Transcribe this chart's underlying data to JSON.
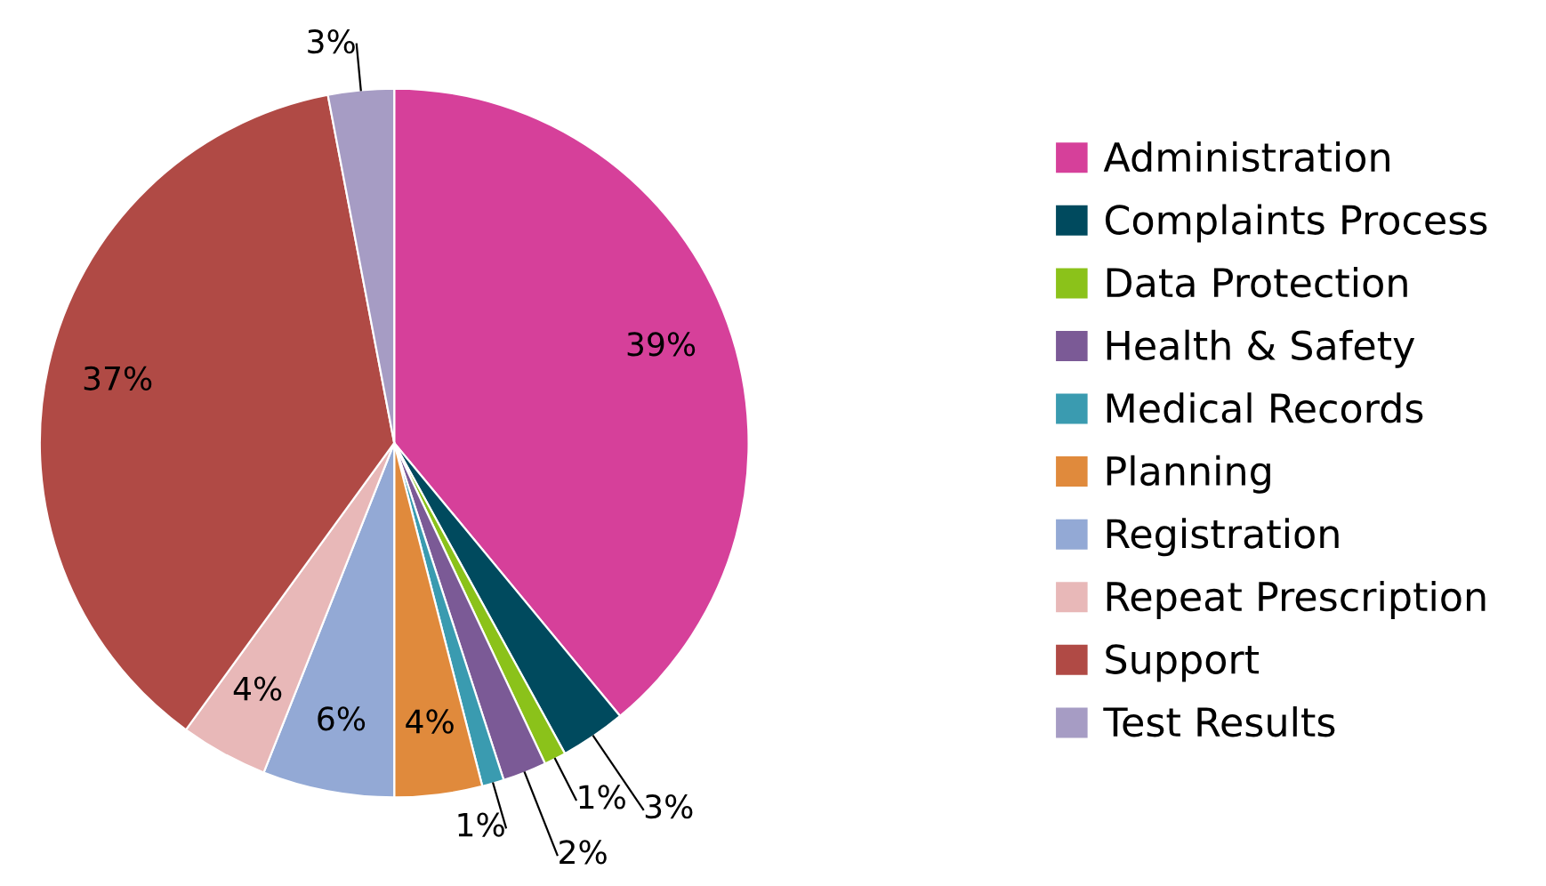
{
  "chart_data": {
    "type": "pie",
    "categories": [
      "Administration",
      "Complaints Process",
      "Data Protection",
      "Health & Safety",
      "Medical Records",
      "Planning",
      "Registration",
      "Repeat Prescription",
      "Support",
      "Test Results"
    ],
    "values": [
      39,
      3,
      1,
      2,
      1,
      4,
      6,
      4,
      37,
      3
    ],
    "value_labels": [
      "39%",
      "3%",
      "1%",
      "2%",
      "1%",
      "4%",
      "6%",
      "4%",
      "37%",
      "3%"
    ],
    "colors": [
      "#d6409a",
      "#004a5e",
      "#8bc21a",
      "#7b5a96",
      "#3a9bb0",
      "#e08a3c",
      "#93a9d5",
      "#e8b8b8",
      "#b04a45",
      "#a69cc4"
    ],
    "legend": "right"
  }
}
